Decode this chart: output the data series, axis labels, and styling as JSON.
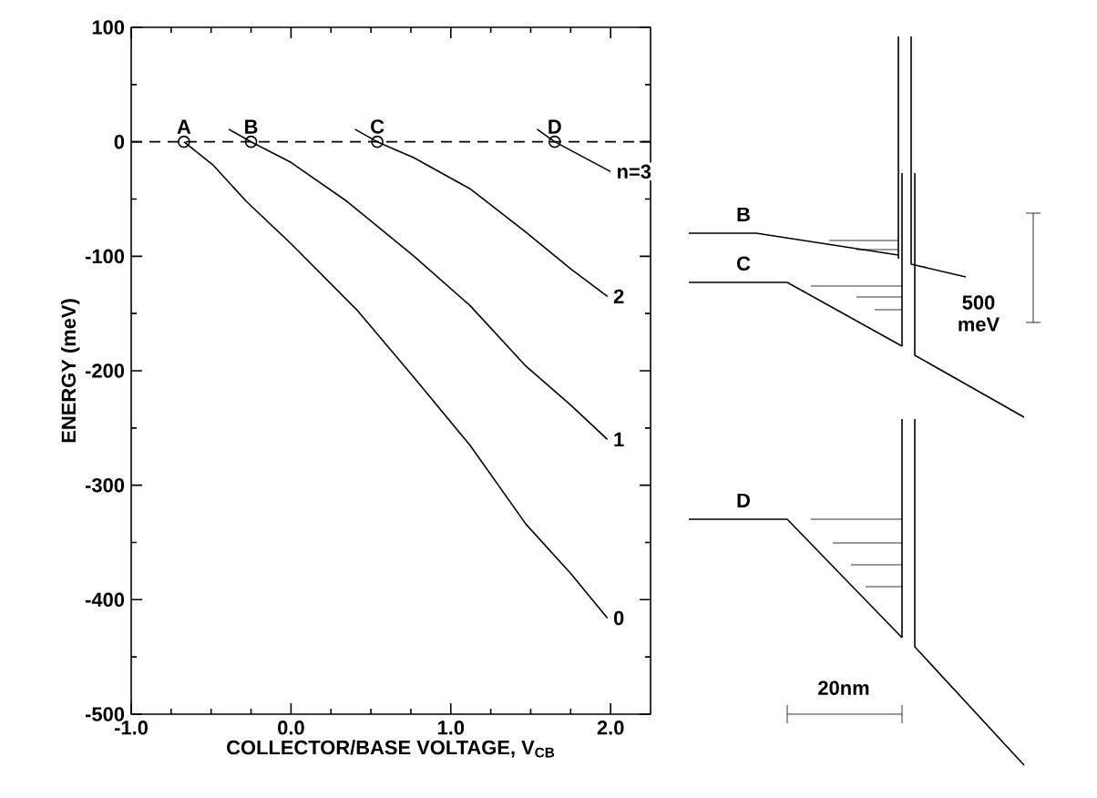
{
  "chart_data": [
    {
      "type": "line",
      "xlabel": "COLLECTOR/BASE VOLTAGE, V$_{CB}$",
      "ylabel": "ENERGY (meV)",
      "xlim": [
        -1.0,
        2.25
      ],
      "ylim": [
        -500,
        100
      ],
      "xticks": [
        {
          "value": -1,
          "label": "-1.0"
        },
        {
          "value": 0,
          "label": "0.0"
        },
        {
          "value": 1,
          "label": "1.0"
        },
        {
          "value": 2,
          "label": "2.0"
        }
      ],
      "yticks": [
        -500,
        -400,
        -300,
        -200,
        -100,
        0,
        100
      ],
      "grid": false,
      "series": [
        {
          "name": "0",
          "type": "line",
          "color": "#000000",
          "x": [
            -0.67,
            -0.49,
            -0.28,
            0.0,
            0.42,
            0.77,
            1.12,
            1.47,
            1.75,
            1.98
          ],
          "values": [
            0,
            -20,
            -52,
            -89,
            -148,
            -206,
            -265,
            -334,
            -377,
            -416
          ]
        },
        {
          "name": "1",
          "type": "line",
          "color": "#000000",
          "x": [
            -0.39,
            -0.25,
            0.0,
            0.35,
            0.77,
            1.12,
            1.47,
            1.75,
            1.98
          ],
          "values": [
            11,
            0,
            -18,
            -52,
            -100,
            -143,
            -196,
            -230,
            -260
          ]
        },
        {
          "name": "2",
          "type": "line",
          "color": "#000000",
          "x": [
            0.4,
            0.54,
            0.77,
            1.12,
            1.47,
            1.75,
            1.98
          ],
          "values": [
            11,
            0,
            -14,
            -41,
            -79,
            -111,
            -135
          ]
        },
        {
          "name": "n=3",
          "type": "line",
          "color": "#000000",
          "x": [
            1.54,
            1.65,
            2.0
          ],
          "values": [
            11,
            0,
            -26
          ]
        },
        {
          "type": "scatter",
          "marker": "circle",
          "color": "#000000",
          "x": [
            -0.67,
            -0.25,
            0.54,
            1.65
          ],
          "values": [
            0,
            0,
            0,
            0
          ]
        }
      ],
      "ref_lines": [
        {
          "axis": "y",
          "value": 0,
          "line_style": "dashed",
          "color": "#000000"
        }
      ],
      "annotations": [
        {
          "text": "A",
          "x": -0.67,
          "y": 0
        },
        {
          "text": "B",
          "x": -0.25,
          "y": 0
        },
        {
          "text": "C",
          "x": 0.54,
          "y": 0
        },
        {
          "text": "D",
          "x": 1.65,
          "y": 0
        }
      ]
    },
    {
      "type": "other",
      "annotations": [
        "B",
        "C",
        "D",
        "500 meV",
        "20nm"
      ]
    }
  ]
}
